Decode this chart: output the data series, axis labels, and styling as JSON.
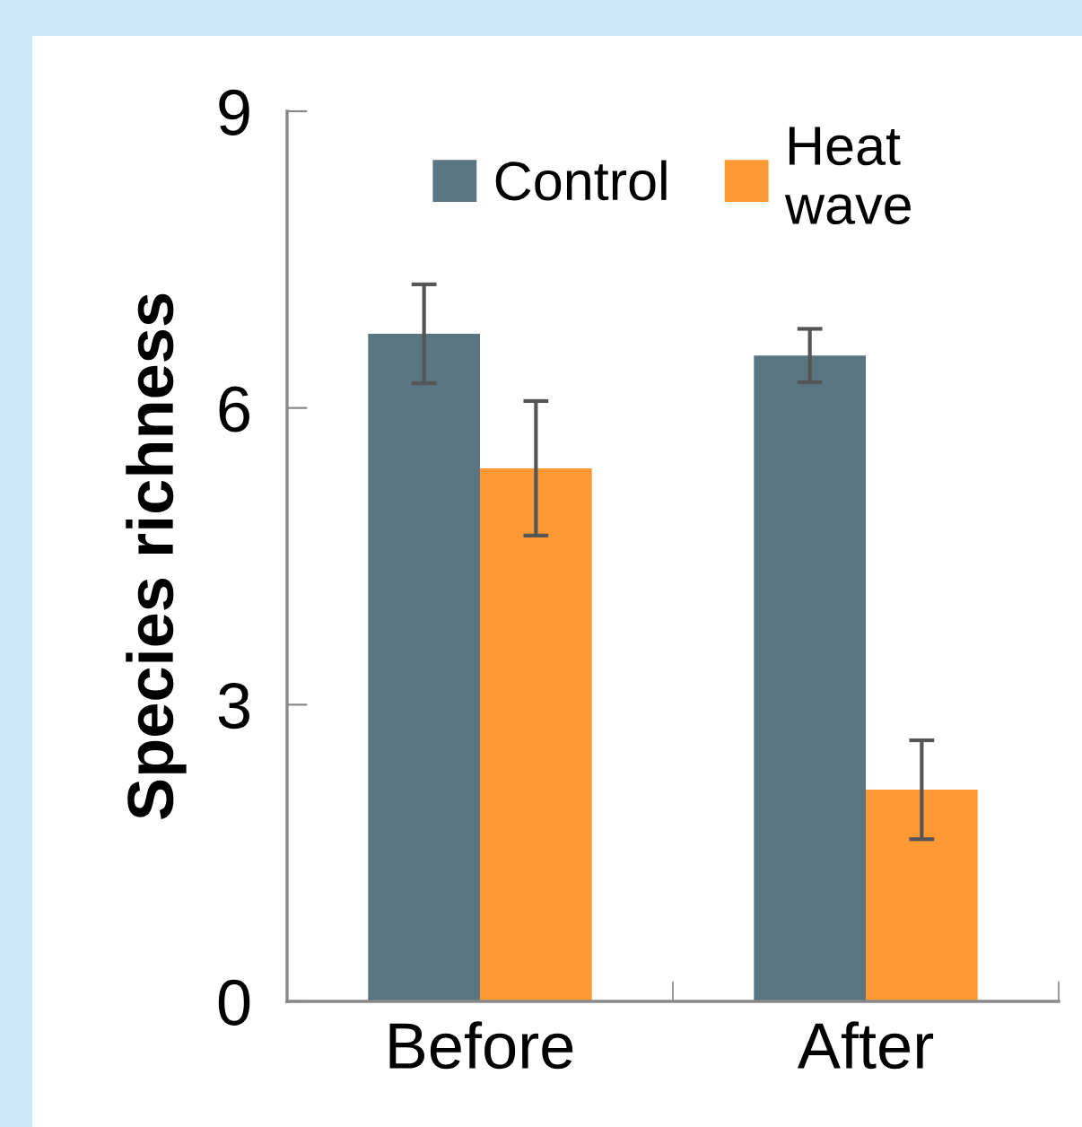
{
  "chart_data": {
    "type": "bar",
    "ylabel": "Species richness",
    "categories": [
      "Before",
      "After"
    ],
    "series": [
      {
        "name": "Control",
        "color": "#5a7582",
        "values": [
          6.75,
          6.53
        ],
        "errors": [
          0.5,
          0.27
        ]
      },
      {
        "name": "Heat\nwave",
        "color": "#ff9933",
        "values": [
          5.39,
          2.14
        ],
        "errors": [
          0.68,
          0.5
        ]
      }
    ],
    "ylim": [
      0,
      9
    ],
    "yticks": [
      0,
      3,
      6,
      9
    ],
    "legend": "top",
    "grid": false
  }
}
